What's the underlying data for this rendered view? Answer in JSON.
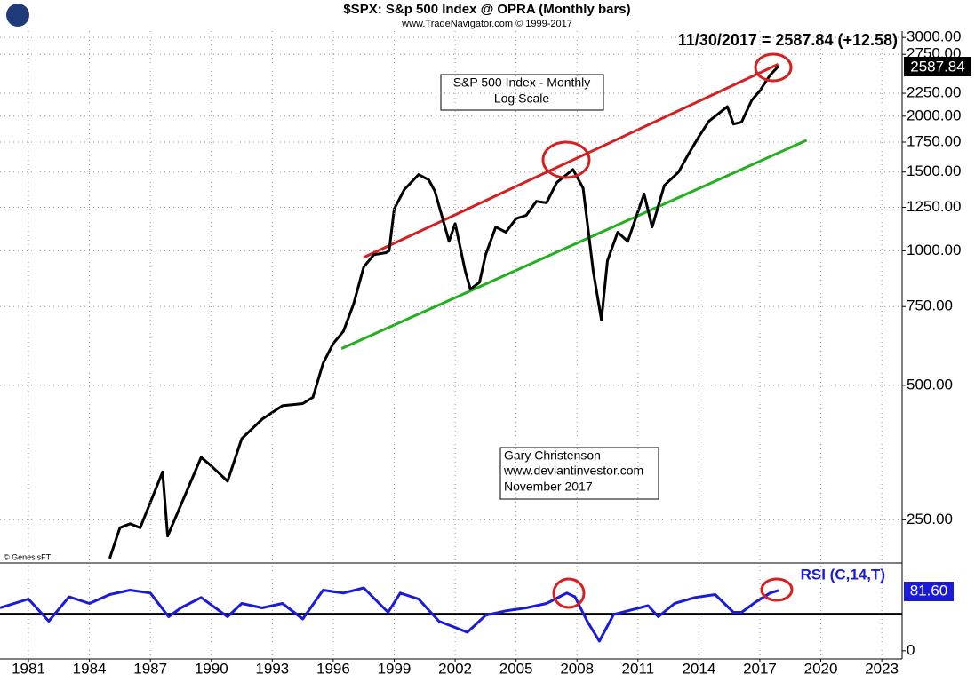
{
  "chart_data": [
    {
      "type": "line",
      "title": "$SPX:  S&p 500 Index @ OPRA  (Monthly bars)",
      "subtitle": "www.TradeNavigator.com © 1999-2017",
      "header": "11/30/2017 = 2587.84 (+12.58)",
      "price_label": "2587.84",
      "annotation_box": [
        "S&P 500 Index - Monthly",
        "Log Scale"
      ],
      "author_box": [
        "Gary Christenson",
        "www.deviantinvestor.com",
        "November 2017"
      ],
      "credit": "© GenesisFT",
      "log_scale": true,
      "grid": true,
      "xlim": [
        1979.6,
        2024.0
      ],
      "ylim": [
        202,
        3100
      ],
      "yticks": [
        {
          "value": 250,
          "label": "250.00"
        },
        {
          "value": 500,
          "label": "500.00"
        },
        {
          "value": 750,
          "label": "750.00"
        },
        {
          "value": 1000,
          "label": "1000.00"
        },
        {
          "value": 1250,
          "label": "1250.00"
        },
        {
          "value": 1500,
          "label": "1500.00"
        },
        {
          "value": 1750,
          "label": "1750.00"
        },
        {
          "value": 2000,
          "label": "2000.00"
        },
        {
          "value": 2250,
          "label": "2250.00"
        },
        {
          "value": 2750,
          "label": "2750.00"
        },
        {
          "value": 3000,
          "label": "3000.00"
        }
      ],
      "series": [
        {
          "color": "#000000",
          "x": [
            1985.0,
            1985.5,
            1986.0,
            1986.5,
            1987.6,
            1987.85,
            1988.5,
            1989.5,
            1990.0,
            1990.8,
            1991.5,
            1992.5,
            1993.5,
            1994.5,
            1995.0,
            1995.5,
            1996.0,
            1996.5,
            1997.0,
            1997.5,
            1998.0,
            1998.6,
            1998.75,
            1999.0,
            1999.5,
            2000.2,
            2000.7,
            2001.0,
            2001.7,
            2002.0,
            2002.5,
            2002.75,
            2003.2,
            2003.5,
            2004.0,
            2004.5,
            2005.0,
            2005.5,
            2006.0,
            2006.5,
            2007.0,
            2007.8,
            2008.3,
            2008.8,
            2009.2,
            2009.5,
            2010.0,
            2010.5,
            2011.3,
            2011.7,
            2012.3,
            2013.0,
            2013.5,
            2014.0,
            2014.5,
            2015.4,
            2015.7,
            2016.1,
            2016.6,
            2017.0,
            2017.5,
            2017.92
          ],
          "values": [
            205,
            240,
            245,
            240,
            320,
            230,
            270,
            345,
            330,
            305,
            380,
            420,
            450,
            455,
            470,
            560,
            620,
            660,
            760,
            920,
            980,
            990,
            1000,
            1240,
            1370,
            1480,
            1440,
            1360,
            1050,
            1150,
            900,
            820,
            850,
            980,
            1130,
            1100,
            1180,
            1200,
            1290,
            1280,
            1420,
            1520,
            1380,
            900,
            700,
            950,
            1100,
            1050,
            1340,
            1130,
            1400,
            1500,
            1650,
            1800,
            1950,
            2100,
            1920,
            1940,
            2170,
            2280,
            2470,
            2587.84
          ]
        }
      ],
      "trendlines": [
        {
          "color": "#d42020",
          "x": [
            1997.5,
            2017.9
          ],
          "values": [
            966,
            2612
          ]
        },
        {
          "color": "#22b020",
          "x": [
            1996.4,
            2019.3
          ],
          "values": [
            604,
            1767
          ]
        }
      ]
    },
    {
      "type": "line",
      "title": "RSI (C,14,T)",
      "value_label": "81.60",
      "xlim": [
        1979.6,
        2024.0
      ],
      "ylim": [
        -11,
        115
      ],
      "yticks": [
        0
      ],
      "hline": 50,
      "xticks": [
        1981,
        1984,
        1987,
        1990,
        1993,
        1996,
        1999,
        2002,
        2005,
        2008,
        2011,
        2014,
        2017,
        2020,
        2023
      ],
      "series": [
        {
          "color": "#1a1adc",
          "x": [
            1979.6,
            1981,
            1982,
            1983,
            1984,
            1985,
            1986,
            1987,
            1987.9,
            1988.5,
            1989.5,
            1990.8,
            1991.5,
            1992.5,
            1993.5,
            1994.5,
            1995.5,
            1996.5,
            1997.5,
            1998.7,
            1999.3,
            2000.2,
            2001.2,
            2002.6,
            2003.5,
            2004.5,
            2005.5,
            2006.5,
            2007.5,
            2007.9,
            2008.5,
            2009.1,
            2009.8,
            2010.5,
            2011.5,
            2012.0,
            2012.8,
            2013.8,
            2014.8,
            2015.7,
            2016.1,
            2016.8,
            2017.5,
            2017.92
          ],
          "values": [
            58,
            70,
            40,
            73,
            64,
            76,
            82,
            78,
            46,
            58,
            72,
            46,
            64,
            58,
            64,
            43,
            82,
            78,
            85,
            52,
            78,
            70,
            40,
            25,
            48,
            54,
            58,
            64,
            78,
            73,
            40,
            13,
            49,
            54,
            61,
            46,
            64,
            72,
            76,
            52,
            52,
            66,
            78,
            81.6
          ]
        }
      ]
    }
  ]
}
